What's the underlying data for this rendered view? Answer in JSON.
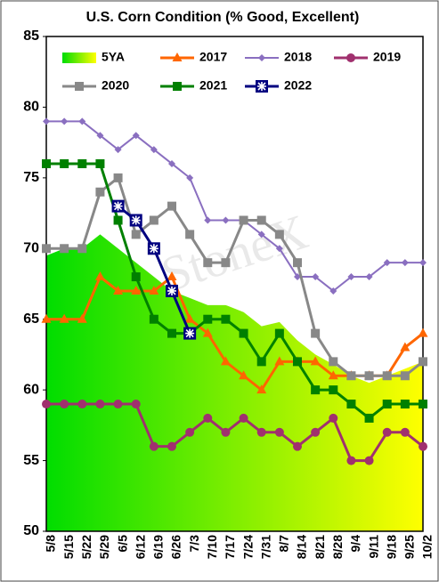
{
  "chart_data": {
    "type": "line",
    "title": "U.S. Corn Condition (% Good, Excellent)",
    "watermark": "StoneX",
    "categories": [
      "5/8",
      "5/15",
      "5/22",
      "5/29",
      "6/5",
      "6/12",
      "6/19",
      "6/26",
      "7/3",
      "7/10",
      "7/17",
      "7/24",
      "7/31",
      "8/7",
      "8/14",
      "8/21",
      "8/28",
      "9/4",
      "9/11",
      "9/18",
      "9/25",
      "10/2"
    ],
    "ylim": [
      50,
      85
    ],
    "yticks": [
      50,
      55,
      60,
      65,
      70,
      75,
      80,
      85
    ],
    "series": [
      {
        "name": "5YA",
        "style": "area",
        "color": "#00dd00",
        "color2": "#ffff00",
        "values": [
          69.5,
          70,
          70,
          71,
          70,
          69,
          68,
          67,
          66.5,
          66,
          66,
          65.5,
          64.5,
          64.8,
          63.5,
          62.5,
          61.8,
          61,
          60.5,
          61,
          61.5,
          62
        ]
      },
      {
        "name": "2017",
        "marker": "triangle",
        "color": "#ff6600",
        "values": [
          65,
          65,
          65,
          68,
          67,
          67,
          67,
          68,
          65,
          64,
          62,
          61,
          60,
          62,
          62,
          62,
          61,
          61,
          61,
          61,
          63,
          64
        ]
      },
      {
        "name": "2018",
        "marker": "diamond",
        "color": "#8a6fc0",
        "values": [
          79,
          79,
          79,
          78,
          77,
          78,
          77,
          76,
          75,
          72,
          72,
          72,
          71,
          70,
          68,
          68,
          67,
          68,
          68,
          69,
          69,
          69
        ]
      },
      {
        "name": "2019",
        "marker": "circle",
        "color": "#a0306e",
        "values": [
          59,
          59,
          59,
          59,
          59,
          59,
          56,
          56,
          57,
          58,
          57,
          58,
          57,
          57,
          56,
          57,
          58,
          55,
          55,
          57,
          57,
          56
        ]
      },
      {
        "name": "2020",
        "marker": "square",
        "color": "#888888",
        "values": [
          70,
          70,
          70,
          74,
          75,
          71,
          72,
          73,
          71,
          69,
          69,
          72,
          72,
          71,
          69,
          64,
          62,
          61,
          61,
          61,
          61,
          62
        ]
      },
      {
        "name": "2021",
        "marker": "square",
        "color": "#008000",
        "values": [
          76,
          76,
          76,
          76,
          72,
          68,
          65,
          64,
          64,
          65,
          65,
          64,
          62,
          64,
          62,
          60,
          60,
          59,
          58,
          59,
          59,
          59
        ]
      },
      {
        "name": "2022",
        "marker": "star",
        "color": "#000080",
        "values": [
          null,
          null,
          null,
          null,
          73,
          72,
          70,
          67,
          64,
          null,
          null,
          null,
          null,
          null,
          null,
          null,
          null,
          null,
          null,
          null,
          null,
          null
        ]
      }
    ]
  }
}
